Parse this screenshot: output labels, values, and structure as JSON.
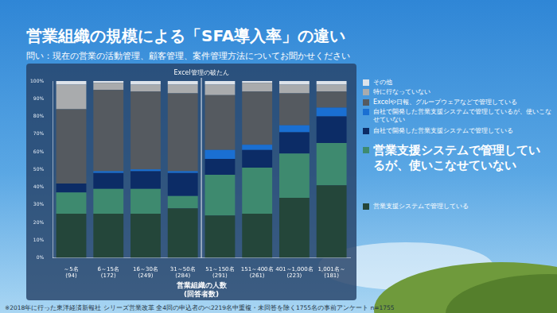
{
  "chart_data": {
    "type": "bar",
    "stacked": true,
    "title": "営業組織の規模による「SFA導入率」の違い",
    "subtitle": "問い：現在の営業の活動管理、顧客管理、案件管理方法についてお聞かせください",
    "annotation": "Excel管理の破たん",
    "x_label": [
      "営業組織の人数",
      "(回答者数)"
    ],
    "footnote": "※2018年に行った東洋経済新報社 シリーズ営業改革 全4回の申込者のべ2219名中重複・未回答を除く1755名の事前アンケート n=1755",
    "categories": [
      [
        "～5名",
        "(94)"
      ],
      [
        "6～15名",
        "(172)"
      ],
      [
        "16～30名",
        "(249)"
      ],
      [
        "31～50名",
        "(284)"
      ],
      [
        "51～150名",
        "(291)"
      ],
      [
        "151～400名",
        "(261)"
      ],
      [
        "401～1,000名",
        "(223)"
      ],
      [
        "1,001名～",
        "(181)"
      ]
    ],
    "ylim": [
      0,
      100
    ],
    "yticks": [
      {
        "value": 0,
        "label": "0%"
      },
      {
        "value": 10,
        "label": "10%"
      },
      {
        "value": 20,
        "label": "20%"
      },
      {
        "value": 30,
        "label": "30%"
      },
      {
        "value": 40,
        "label": "40%"
      },
      {
        "value": 50,
        "label": "50%"
      },
      {
        "value": 60,
        "label": "60%"
      },
      {
        "value": 70,
        "label": "70%"
      },
      {
        "value": 80,
        "label": "80%"
      },
      {
        "value": 90,
        "label": "90%"
      },
      {
        "value": 100,
        "label": "100%"
      }
    ],
    "grid": false,
    "legend": "right",
    "series": [
      {
        "name": "営業支援システムで管理している",
        "color": "#24463a",
        "values": [
          25,
          25,
          25,
          28,
          24,
          25,
          34,
          41
        ]
      },
      {
        "name": "営業支援システムで管理しているが、使いこなせていない",
        "color": "#3e8a6f",
        "values": [
          12,
          14,
          14,
          7,
          23,
          26,
          25,
          24
        ]
      },
      {
        "name": "自社で開発した営業支援システムで管理している",
        "color": "#0c2c66",
        "values": [
          5,
          9,
          10,
          13,
          9,
          10,
          12,
          15
        ]
      },
      {
        "name": "自社で開発した営業支援システムで管理しているが、使いこなせていない",
        "color": "#1a6fd2",
        "values": [
          0,
          1,
          1,
          1,
          5,
          3,
          4,
          5
        ]
      },
      {
        "name": "Excelや日報、グループウェアなどで管理している",
        "color": "#555a60",
        "values": [
          42,
          46,
          44,
          44,
          31,
          30,
          18,
          9
        ]
      },
      {
        "name": "特に行なっていない",
        "color": "#a9abad",
        "values": [
          14,
          4,
          4,
          5,
          6,
          5,
          5,
          4
        ]
      },
      {
        "name": "その他",
        "color": "#dde3ea",
        "values": [
          2,
          1,
          2,
          2,
          2,
          1,
          2,
          2
        ]
      }
    ]
  }
}
